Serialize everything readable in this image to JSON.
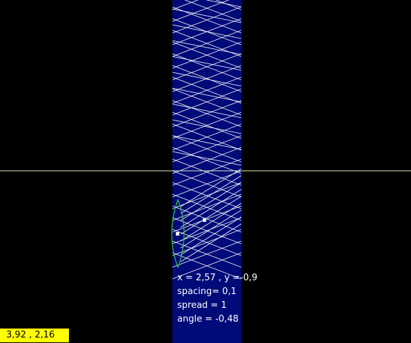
{
  "colors": {
    "background": "#000000",
    "band": "#000a78",
    "grid_lines": "#ffffff",
    "horizon_line": "#e6f0c8",
    "lens_outline": "#33cc33",
    "handle": "#ffffff",
    "coord_box_bg": "#ffff00",
    "coord_box_text": "#000000",
    "readout_text": "#ffffff"
  },
  "readout": {
    "position": "x = 2,57 , y =-0,9",
    "spacing": "spacing= 0,1",
    "spread": "spread = 1",
    "angle": "angle = -0,48"
  },
  "cursor_coords": "3,92 , 2,16"
}
